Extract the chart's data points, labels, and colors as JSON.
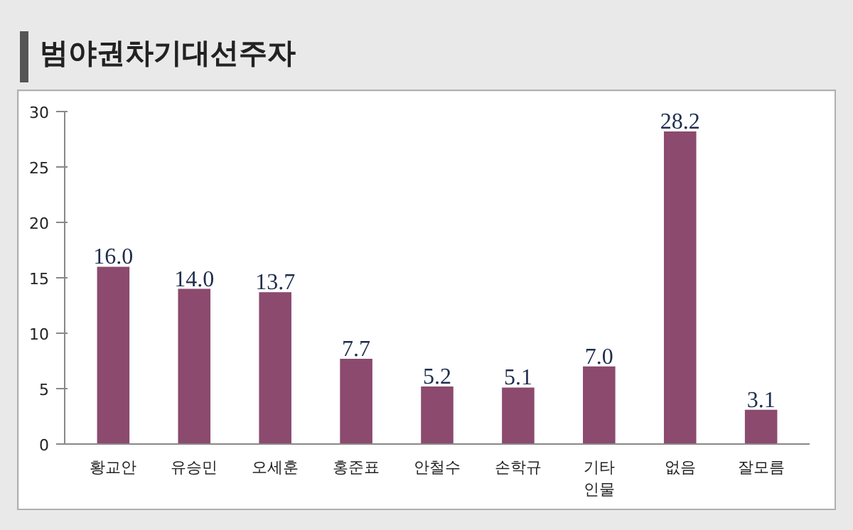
{
  "chart_data": {
    "type": "bar",
    "title": "범야권차기대선주자",
    "categories": [
      "황교안",
      "유승민",
      "오세훈",
      "홍준표",
      "안철수",
      "손학규",
      "기타\n인물",
      "없음",
      "잘모름"
    ],
    "values": [
      16.0,
      14.0,
      13.7,
      7.7,
      5.2,
      5.1,
      7.0,
      28.2,
      3.1
    ],
    "value_labels": [
      "16.0",
      "14.0",
      "13.7",
      "7.7",
      "5.2",
      "5.1",
      "7.0",
      "28.2",
      "3.1"
    ],
    "color": "#8b4a6e",
    "ylim": [
      0,
      30
    ],
    "yticks": [
      0,
      5,
      10,
      15,
      20,
      25,
      30
    ],
    "grid": false
  }
}
